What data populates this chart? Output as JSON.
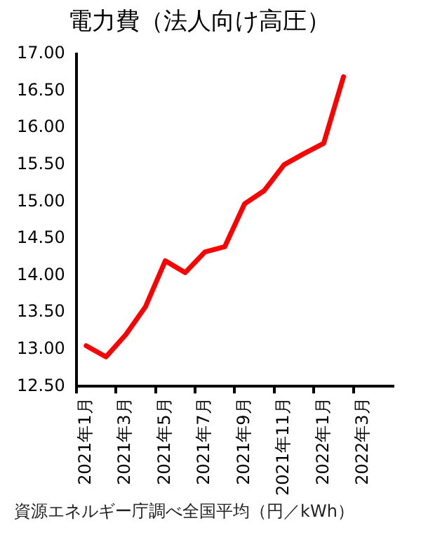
{
  "chart_data": {
    "type": "line",
    "title": "電力費（法人向け高圧）",
    "categories": [
      "2021年1月",
      null,
      "2021年3月",
      null,
      "2021年5月",
      null,
      "2021年7月",
      null,
      "2021年9月",
      null,
      "2021年11月",
      null,
      "2022年1月",
      null,
      "2022年3月",
      null
    ],
    "series": [
      {
        "color": "#ff0000",
        "values": [
          13.05,
          12.9,
          13.2,
          13.58,
          14.2,
          14.04,
          14.32,
          14.39,
          14.97,
          15.15,
          15.5,
          15.65,
          15.79,
          16.69,
          null,
          null
        ]
      }
    ],
    "ylim": [
      12.5,
      17
    ],
    "yticks": [
      {
        "value": 12.5,
        "label": "12.50"
      },
      {
        "value": 13,
        "label": "13.00"
      },
      {
        "value": 13.5,
        "label": "13.50"
      },
      {
        "value": 14,
        "label": "14.00"
      },
      {
        "value": 14.5,
        "label": "14.50"
      },
      {
        "value": 15,
        "label": "15.00"
      },
      {
        "value": 15.5,
        "label": "15.50"
      },
      {
        "value": 16,
        "label": "16.00"
      },
      {
        "value": 16.5,
        "label": "16.50"
      },
      {
        "value": 17,
        "label": "17.00"
      }
    ],
    "grid": false,
    "legend": false,
    "marker": "none",
    "line_style": "solid",
    "annotations": [
      "資源エネルギー庁調べ全国平均（円／kWh）"
    ]
  }
}
